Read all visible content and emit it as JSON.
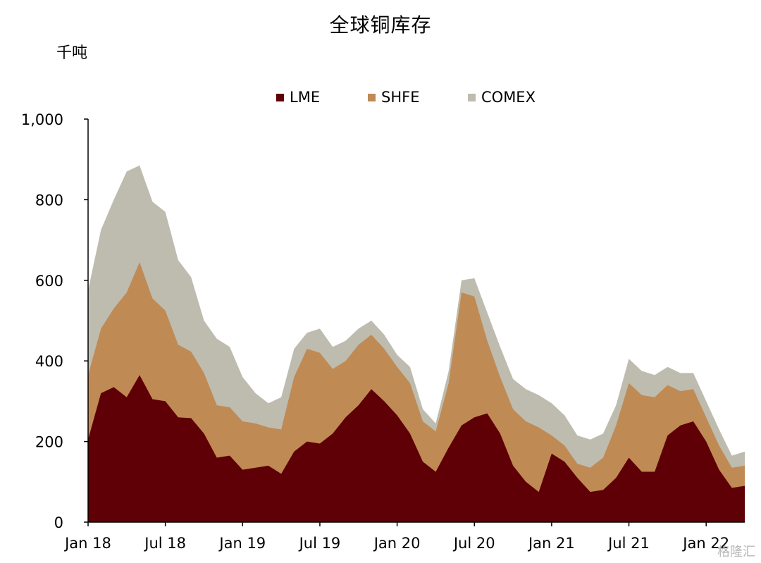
{
  "chart_data": {
    "type": "area",
    "stacked": true,
    "title": "全球铜库存",
    "unit": "千吨",
    "ylim": [
      0,
      1000
    ],
    "yticks": [
      "0",
      "200",
      "400",
      "600",
      "800",
      "1,000"
    ],
    "xlim": [
      "2018-01",
      "2022-04"
    ],
    "xticks": [
      {
        "label": "Jan 18",
        "date": "2018-01"
      },
      {
        "label": "Jul 18",
        "date": "2018-07"
      },
      {
        "label": "Jan 19",
        "date": "2019-01"
      },
      {
        "label": "Jul 19",
        "date": "2019-07"
      },
      {
        "label": "Jan 20",
        "date": "2020-01"
      },
      {
        "label": "Jul 20",
        "date": "2020-07"
      },
      {
        "label": "Jan 21",
        "date": "2021-01"
      },
      {
        "label": "Jul 21",
        "date": "2021-07"
      },
      {
        "label": "Jan 22",
        "date": "2022-01"
      }
    ],
    "legend_position": "top-center",
    "x": [
      "2018-01",
      "2018-02",
      "2018-03",
      "2018-04",
      "2018-05",
      "2018-06",
      "2018-07",
      "2018-08",
      "2018-09",
      "2018-10",
      "2018-11",
      "2018-12",
      "2019-01",
      "2019-02",
      "2019-03",
      "2019-04",
      "2019-05",
      "2019-06",
      "2019-07",
      "2019-08",
      "2019-09",
      "2019-10",
      "2019-11",
      "2019-12",
      "2020-01",
      "2020-02",
      "2020-03",
      "2020-04",
      "2020-05",
      "2020-06",
      "2020-07",
      "2020-08",
      "2020-09",
      "2020-10",
      "2020-11",
      "2020-12",
      "2021-01",
      "2021-02",
      "2021-03",
      "2021-04",
      "2021-05",
      "2021-06",
      "2021-07",
      "2021-08",
      "2021-09",
      "2021-10",
      "2021-11",
      "2021-12",
      "2022-01",
      "2022-02",
      "2022-03",
      "2022-04"
    ],
    "series": [
      {
        "name": "LME",
        "color": "#5e0006",
        "values": [
          205,
          320,
          335,
          310,
          365,
          305,
          300,
          260,
          258,
          220,
          160,
          165,
          130,
          135,
          140,
          120,
          175,
          200,
          195,
          220,
          260,
          290,
          330,
          300,
          265,
          220,
          150,
          125,
          185,
          240,
          260,
          270,
          220,
          140,
          100,
          75,
          170,
          150,
          110,
          75,
          80,
          110,
          160,
          125,
          125,
          215,
          240,
          250,
          200,
          130,
          85,
          90
        ]
      },
      {
        "name": "SHFE",
        "color": "#c08a55",
        "values": [
          160,
          160,
          195,
          260,
          280,
          250,
          225,
          180,
          165,
          150,
          130,
          120,
          120,
          110,
          95,
          110,
          185,
          230,
          225,
          160,
          140,
          150,
          135,
          130,
          120,
          125,
          100,
          100,
          160,
          330,
          300,
          180,
          140,
          140,
          150,
          160,
          45,
          40,
          35,
          60,
          80,
          130,
          185,
          190,
          185,
          125,
          85,
          80,
          60,
          60,
          50,
          50
        ]
      },
      {
        "name": "COMEX",
        "color": "#bdbcaf",
        "values": [
          210,
          245,
          270,
          300,
          240,
          240,
          245,
          210,
          185,
          130,
          165,
          150,
          110,
          75,
          60,
          80,
          70,
          40,
          60,
          55,
          50,
          40,
          35,
          35,
          30,
          40,
          30,
          20,
          30,
          30,
          45,
          70,
          75,
          75,
          80,
          80,
          80,
          75,
          70,
          70,
          60,
          50,
          60,
          60,
          55,
          45,
          45,
          40,
          40,
          40,
          30,
          35
        ]
      }
    ]
  },
  "watermark": "格隆汇"
}
